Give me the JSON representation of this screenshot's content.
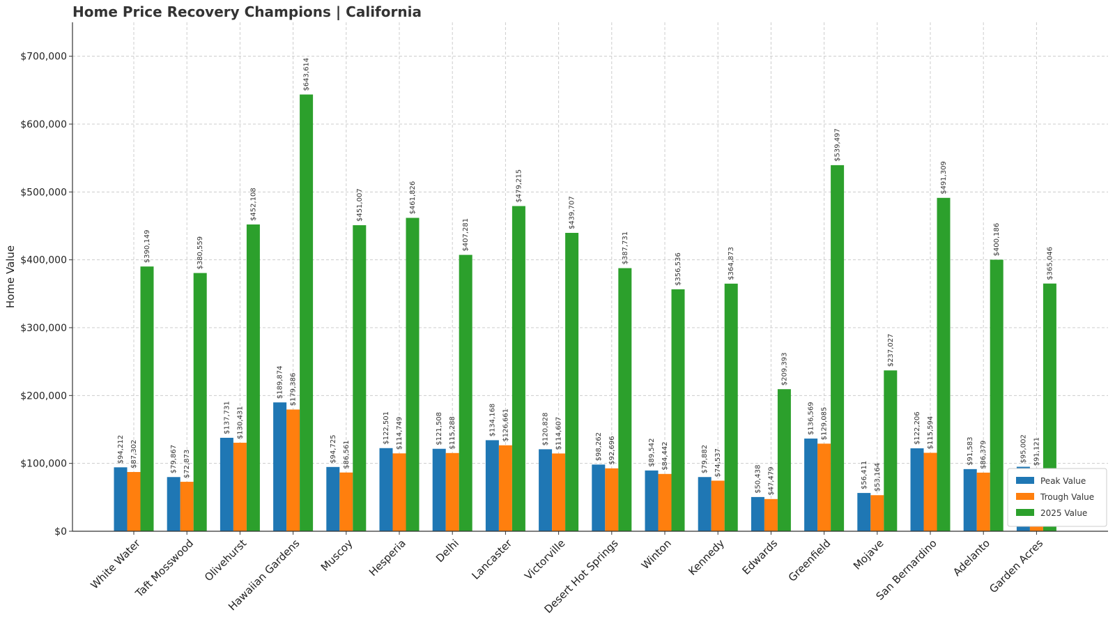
{
  "chart_data": {
    "type": "bar",
    "title": "Home Price Recovery Champions | California",
    "ylabel": "Home Value",
    "xlabel": "",
    "ylim": [
      0,
      750000
    ],
    "yticks": [
      0,
      100000,
      200000,
      300000,
      400000,
      500000,
      600000,
      700000
    ],
    "ytick_labels": [
      "$0",
      "$100,000",
      "$200,000",
      "$300,000",
      "$400,000",
      "$500,000",
      "$600,000",
      "$700,000"
    ],
    "grid": true,
    "legend_position": "bottom-right",
    "categories": [
      "White Water",
      "Taft Mosswood",
      "Olivehurst",
      "Hawaiian Gardens",
      "Muscoy",
      "Hesperia",
      "Delhi",
      "Lancaster",
      "Victorville",
      "Desert Hot Springs",
      "Winton",
      "Kennedy",
      "Edwards",
      "Greenfield",
      "Mojave",
      "San Bernardino",
      "Adelanto",
      "Garden Acres"
    ],
    "series": [
      {
        "name": "Peak Value",
        "color": "#1f77b4",
        "values": [
          94212,
          79867,
          137731,
          189874,
          94725,
          122501,
          121508,
          134168,
          120828,
          98262,
          89542,
          79882,
          50438,
          136569,
          56411,
          122206,
          91583,
          95002
        ],
        "labels": [
          "$94,212",
          "$79,867",
          "$137,731",
          "$189,874",
          "$94,725",
          "$122,501",
          "$121,508",
          "$134,168",
          "$120,828",
          "$98,262",
          "$89,542",
          "$79,882",
          "$50,438",
          "$136,569",
          "$56,411",
          "$122,206",
          "$91,583",
          "$95,002"
        ]
      },
      {
        "name": "Trough Value",
        "color": "#ff7f0e",
        "values": [
          87302,
          72873,
          130431,
          179386,
          86561,
          114749,
          115288,
          126661,
          114607,
          92696,
          84442,
          74537,
          47479,
          129085,
          53164,
          115594,
          86379,
          91121
        ],
        "labels": [
          "$87,302",
          "$72,873",
          "$130,431",
          "$179,386",
          "$86,561",
          "$114,749",
          "$115,288",
          "$126,661",
          "$114,607",
          "$92,696",
          "$84,442",
          "$74,537",
          "$47,479",
          "$129,085",
          "$53,164",
          "$115,594",
          "$86,379",
          "$91,121"
        ]
      },
      {
        "name": "2025 Value",
        "color": "#2ca02c",
        "values": [
          390149,
          380559,
          452108,
          643614,
          451007,
          461826,
          407281,
          479215,
          439707,
          387731,
          356536,
          364873,
          209393,
          539497,
          237027,
          491309,
          400186,
          365046
        ],
        "labels": [
          "$390,149",
          "$380,559",
          "$452,108",
          "$643,614",
          "$451,007",
          "$461,826",
          "$407,281",
          "$479,215",
          "$439,707",
          "$387,731",
          "$356,536",
          "$364,873",
          "$209,393",
          "$539,497",
          "$237,027",
          "$491,309",
          "$400,186",
          "$365,046"
        ]
      }
    ]
  }
}
